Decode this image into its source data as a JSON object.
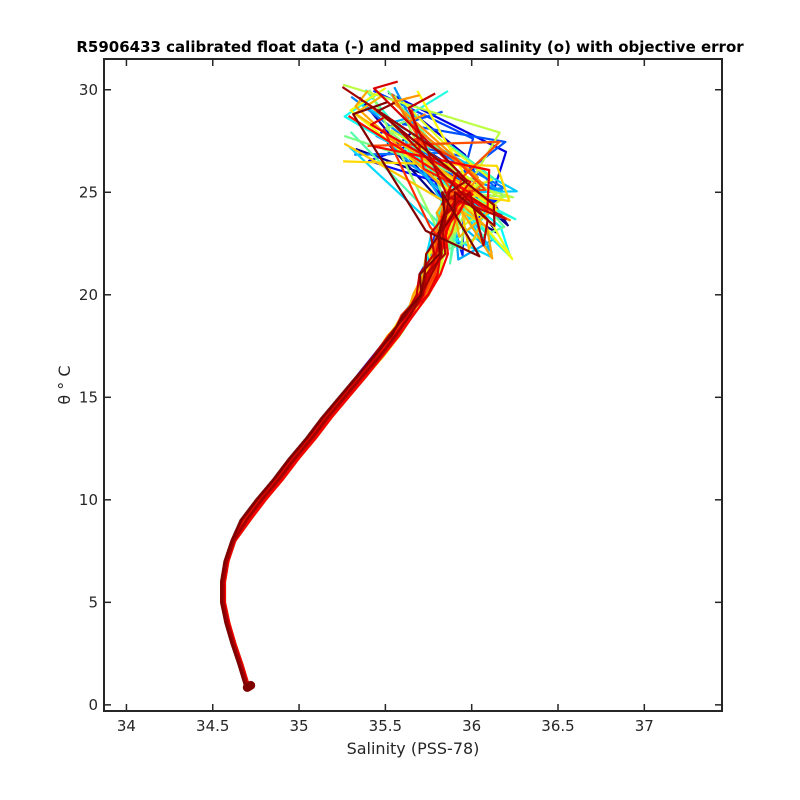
{
  "chart_data": {
    "type": "line",
    "title": "R5906433 calibrated float data (-) and mapped salinity (o) with objective error",
    "xlabel": "Salinity (PSS-78)",
    "ylabel": "θ ° C",
    "xlim": [
      33.87,
      37.45
    ],
    "ylim": [
      -0.3,
      31.5
    ],
    "x_ticks": [
      34,
      34.5,
      35,
      35.5,
      36,
      36.5,
      37
    ],
    "x_tick_labels": [
      "34",
      "34.5",
      "35",
      "35.5",
      "36",
      "36.5",
      "37"
    ],
    "y_ticks": [
      0,
      5,
      10,
      15,
      20,
      25,
      30
    ],
    "y_tick_labels": [
      "0",
      "5",
      "10",
      "15",
      "20",
      "25",
      "30"
    ],
    "grid": false,
    "legend": "none",
    "colormap": "jet",
    "profile_count": 60,
    "base_profile": {
      "theta": [
        0.9,
        2,
        3,
        4,
        5,
        6,
        7,
        8,
        9,
        10,
        11,
        12,
        13,
        14,
        15,
        16,
        17,
        18,
        19,
        20,
        21,
        22,
        23,
        24,
        25
      ],
      "salinity": [
        34.7,
        34.66,
        34.62,
        34.585,
        34.56,
        34.56,
        34.58,
        34.62,
        34.69,
        34.78,
        34.88,
        34.97,
        35.07,
        35.16,
        35.26,
        35.36,
        35.46,
        35.55,
        35.63,
        35.71,
        35.76,
        35.8,
        35.84,
        35.88,
        35.92
      ]
    },
    "upper_layer_range": {
      "salinity_min": 35.25,
      "salinity_max": 36.27,
      "theta_min": 20,
      "theta_max": 30.4
    },
    "mapped_points": {
      "theta": [
        0.85,
        0.9,
        0.95
      ],
      "salinity": [
        34.7,
        34.71,
        34.72
      ]
    }
  }
}
